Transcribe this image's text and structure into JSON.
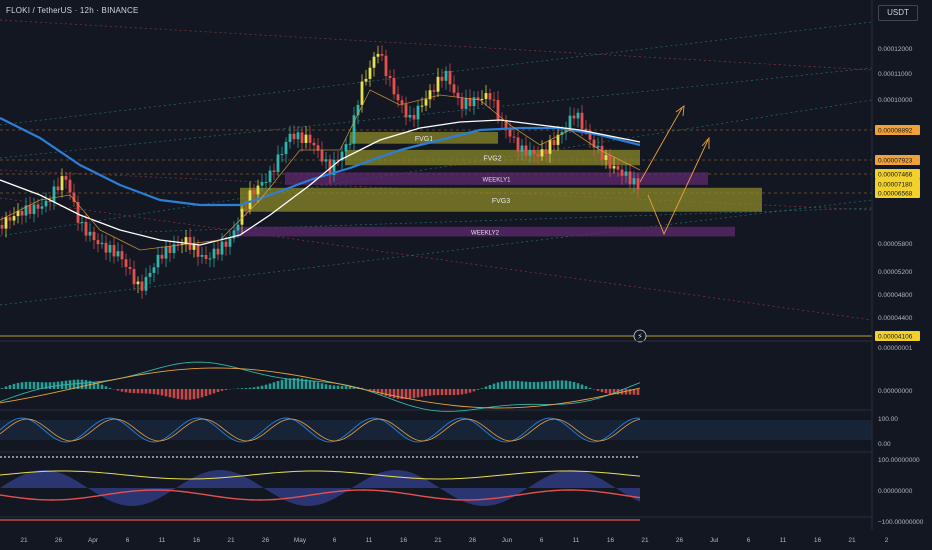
{
  "header": {
    "symbol": "FLOKI / TetherUS · 12h · BINANCE",
    "currency_button": "USDT"
  },
  "colors": {
    "background": "#131722",
    "bull": "#2fb5a9",
    "bull_yellow": "#e7e04f",
    "bear": "#e5504f",
    "ma_white": "#ffffff",
    "ma_blue": "#2b7fd8",
    "ma_orange": "#e9a13b",
    "fvg_zone": "#8c8a2a",
    "weekly_zone": "#5d2a6e",
    "price_tag_yellow": "#f2d12b",
    "price_tag_orange": "#f0a238",
    "last_price_tag": "#f5c542"
  },
  "chart_data": [
    {
      "type": "candlestick",
      "name": "price",
      "interval": "12h",
      "y_ticks": [
        "0.00012000",
        "0.00011000",
        "0.00010000",
        "0.00005800",
        "0.00005200",
        "0.00004800",
        "0.00004400"
      ],
      "x_ticks": [
        "21",
        "26",
        "Apr",
        "6",
        "11",
        "16",
        "21",
        "26",
        "May",
        "6",
        "11",
        "16",
        "21",
        "26",
        "Jun",
        "6",
        "11",
        "16",
        "21",
        "26",
        "Jul",
        "6",
        "11",
        "16",
        "21",
        "2"
      ],
      "price_tags": [
        {
          "label": "0.00008892",
          "value": 8.892e-05,
          "color": "#f0a238"
        },
        {
          "label": "0.00007923",
          "value": 7.923e-05,
          "color": "#f0a238"
        },
        {
          "label": "0.00007466",
          "value": 7.466e-05,
          "color": "#f2d12b"
        },
        {
          "label": "0.00007183",
          "label2": "53:03",
          "value": 7.183e-05,
          "color": "#f5c542",
          "last": true
        },
        {
          "label": "0.00007180",
          "value": 7.18e-05,
          "color": "#f2d12b"
        },
        {
          "label": "0.00006568",
          "value": 6.568e-05,
          "color": "#f2d12b"
        },
        {
          "label": "0.00004106",
          "value": 4.106e-05,
          "color": "#f2d12b"
        }
      ],
      "zones": [
        {
          "label": "FVG1",
          "top": 8.83e-05,
          "bottom": 8.45e-05,
          "kind": "fvg"
        },
        {
          "label": "FVG2",
          "top": 8.25e-05,
          "bottom": 7.75e-05,
          "kind": "fvg"
        },
        {
          "label": "WEEKLY1",
          "top": 7.52e-05,
          "bottom": 7.12e-05,
          "kind": "weekly"
        },
        {
          "label": "FVG3",
          "top": 6.92e-05,
          "bottom": 6.28e-05,
          "kind": "fvg"
        },
        {
          "label": "WEEKLY2",
          "top": 6.05e-05,
          "bottom": 5.9e-05,
          "kind": "weekly"
        }
      ]
    },
    {
      "type": "line",
      "name": "macd",
      "y_ticks": [
        "0.00000001",
        "0.00000000"
      ]
    },
    {
      "type": "line",
      "name": "stoch_rsi",
      "y_ticks": [
        "100.00",
        "0.00"
      ]
    },
    {
      "type": "area",
      "name": "oscillator",
      "y_ticks": [
        "100.00000000",
        "0.00000000",
        "−100.00000000"
      ]
    }
  ]
}
